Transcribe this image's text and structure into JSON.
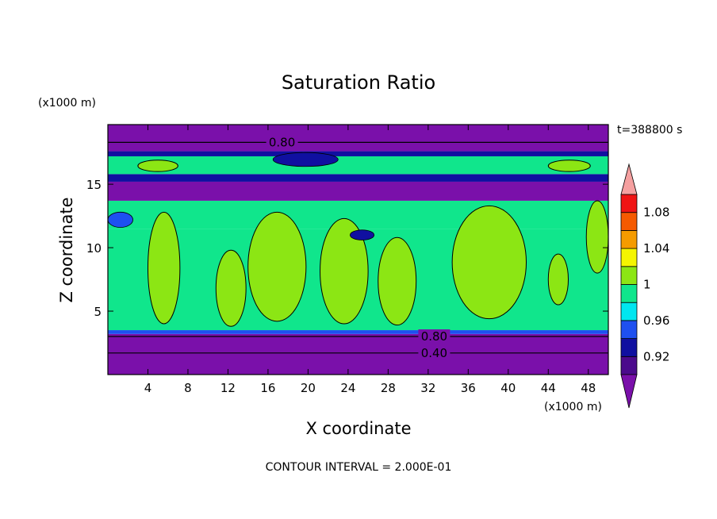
{
  "chart_data": {
    "type": "heatmap",
    "title": "Saturation Ratio",
    "xlabel": "X coordinate",
    "ylabel": "Z coordinate",
    "x_unit": "(x1000 m)",
    "y_unit": "(x1000 m)",
    "xlim": [
      0,
      50
    ],
    "ylim": [
      0,
      19.7
    ],
    "x_ticks": [
      4,
      8,
      12,
      16,
      20,
      24,
      28,
      32,
      36,
      40,
      44,
      48
    ],
    "y_ticks": [
      5,
      10,
      15
    ],
    "time_label": "t=388800 s",
    "footer": "CONTOUR INTERVAL = 2.000E-01",
    "contour_labels": [
      {
        "text": "0.80",
        "x": 17.4,
        "z": 18.3
      },
      {
        "text": "0.80",
        "x": 32.6,
        "z": 3.0
      },
      {
        "text": "0.40",
        "x": 32.6,
        "z": 1.7
      }
    ],
    "colorbar": {
      "bounds": [
        0.9,
        0.92,
        0.94,
        0.96,
        0.98,
        1.0,
        1.02,
        1.04,
        1.06,
        1.08,
        1.1
      ],
      "colors": [
        "#4b0a8c",
        "#1010a0",
        "#1e50f0",
        "#00e6f0",
        "#10e68c",
        "#8ce614",
        "#f5f500",
        "#f59b00",
        "#f55a00",
        "#f01414"
      ],
      "under_color": "#7a10aa",
      "over_color": "#f5a0a0",
      "tick_labels": [
        "0.92",
        "0.96",
        "1",
        "1.04",
        "1.08"
      ],
      "tick_values": [
        0.92,
        0.96,
        1.0,
        1.04,
        1.08
      ]
    },
    "layers": [
      {
        "z0": 0.0,
        "z1": 3.2,
        "value": 0.85,
        "color": "#7a10aa"
      },
      {
        "z0": 3.2,
        "z1": 3.5,
        "value": 0.95,
        "color": "#1e50f0"
      },
      {
        "z0": 3.5,
        "z1": 11.5,
        "value": 0.99,
        "color": "#10e68c"
      },
      {
        "z0": 11.5,
        "z1": 13.7,
        "value": 0.985,
        "color": "#10e68c"
      },
      {
        "z0": 13.7,
        "z1": 15.2,
        "value": 0.9,
        "color": "#7a10aa"
      },
      {
        "z0": 15.2,
        "z1": 15.8,
        "value": 0.93,
        "color": "#1010a0"
      },
      {
        "z0": 15.8,
        "z1": 17.2,
        "value": 0.97,
        "color": "#10e68c"
      },
      {
        "z0": 17.2,
        "z1": 17.6,
        "value": 0.93,
        "color": "#1010a0"
      },
      {
        "z0": 17.6,
        "z1": 19.7,
        "value": 0.8,
        "color": "#7a10aa"
      }
    ],
    "supersaturated_regions": [
      {
        "x": [
          4.0,
          7.2
        ],
        "z": [
          4.0,
          12.8
        ],
        "value": 1.01
      },
      {
        "x": [
          10.8,
          13.8
        ],
        "z": [
          3.8,
          9.8
        ],
        "value": 1.01
      },
      {
        "x": [
          14.0,
          19.8
        ],
        "z": [
          4.2,
          12.8
        ],
        "value": 1.01
      },
      {
        "x": [
          21.2,
          26.0
        ],
        "z": [
          4.0,
          12.3
        ],
        "value": 1.01
      },
      {
        "x": [
          27.0,
          30.8
        ],
        "z": [
          3.9,
          10.8
        ],
        "value": 1.01
      },
      {
        "x": [
          34.4,
          41.8
        ],
        "z": [
          4.4,
          13.3
        ],
        "value": 1.01
      },
      {
        "x": [
          44.0,
          46.0
        ],
        "z": [
          5.5,
          9.5
        ],
        "value": 1.01
      },
      {
        "x": [
          47.8,
          50.0
        ],
        "z": [
          8.0,
          13.7
        ],
        "value": 1.01
      },
      {
        "x": [
          3.0,
          7.0
        ],
        "z": [
          16.0,
          16.9
        ],
        "value": 1.01
      },
      {
        "x": [
          44.0,
          48.2
        ],
        "z": [
          16.0,
          16.9
        ],
        "value": 1.01
      }
    ],
    "dry_pockets": [
      {
        "x": [
          0.0,
          2.5
        ],
        "z": [
          11.6,
          12.8
        ],
        "value": 0.94
      },
      {
        "x": [
          24.2,
          26.6
        ],
        "z": [
          10.6,
          11.4
        ],
        "value": 0.92
      },
      {
        "x": [
          16.5,
          23.0
        ],
        "z": [
          16.4,
          17.5
        ],
        "value": 0.92
      }
    ]
  }
}
